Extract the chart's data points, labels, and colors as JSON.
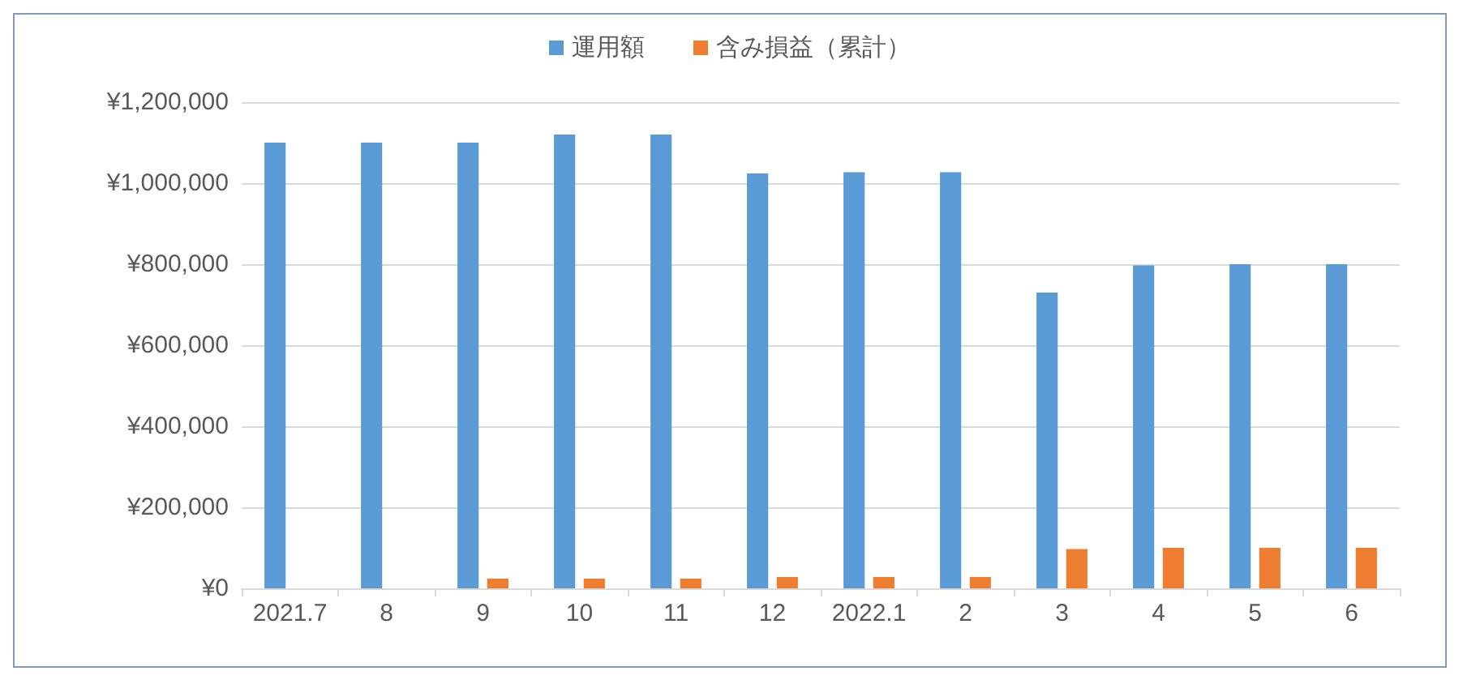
{
  "chart_data": {
    "type": "bar",
    "categories": [
      "2021.7",
      "8",
      "9",
      "10",
      "11",
      "12",
      "2022.1",
      "2",
      "3",
      "4",
      "5",
      "6"
    ],
    "series": [
      {
        "name": "運用額",
        "color": "#5b9bd5",
        "values": [
          1100000,
          1100000,
          1100000,
          1120000,
          1120000,
          1024000,
          1027000,
          1027000,
          730000,
          797000,
          800000,
          800000
        ]
      },
      {
        "name": "含み損益（累計）",
        "color": "#ed7d31",
        "values": [
          0,
          0,
          24000,
          24000,
          24000,
          28000,
          28000,
          28000,
          97000,
          100000,
          100000,
          100000
        ]
      }
    ],
    "ylim": [
      0,
      1200000
    ],
    "yticks": [
      {
        "value": 0,
        "label": "¥0"
      },
      {
        "value": 200000,
        "label": "¥200,000"
      },
      {
        "value": 400000,
        "label": "¥400,000"
      },
      {
        "value": 600000,
        "label": "¥600,000"
      },
      {
        "value": 800000,
        "label": "¥800,000"
      },
      {
        "value": 1000000,
        "label": "¥1,000,000"
      },
      {
        "value": 1200000,
        "label": "¥1,200,000"
      }
    ],
    "grid": "y",
    "legend": "top"
  }
}
